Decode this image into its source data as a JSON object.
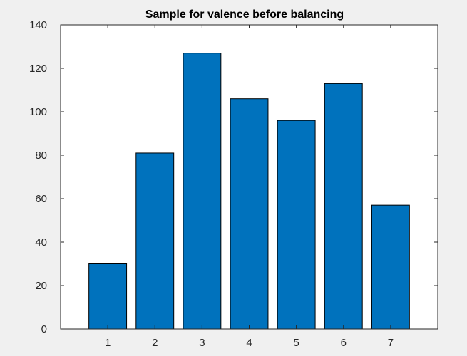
{
  "chart_data": {
    "type": "bar",
    "title": "Sample for valence before balancing",
    "xlabel": "",
    "ylabel": "",
    "categories": [
      "1",
      "2",
      "3",
      "4",
      "5",
      "6",
      "7"
    ],
    "values": [
      30,
      81,
      127,
      106,
      96,
      113,
      57
    ],
    "xlim": [
      0,
      8
    ],
    "ylim": [
      0,
      140
    ],
    "yticks": [
      "0",
      "20",
      "40",
      "60",
      "80",
      "100",
      "120",
      "140"
    ],
    "grid": false,
    "legend": "none",
    "colors": {
      "bar_fill": "#0072bd",
      "bar_edge": "#000000",
      "axes_background": "#ffffff",
      "figure_background": "#f0f0f0",
      "axis_color": "#262626"
    }
  }
}
